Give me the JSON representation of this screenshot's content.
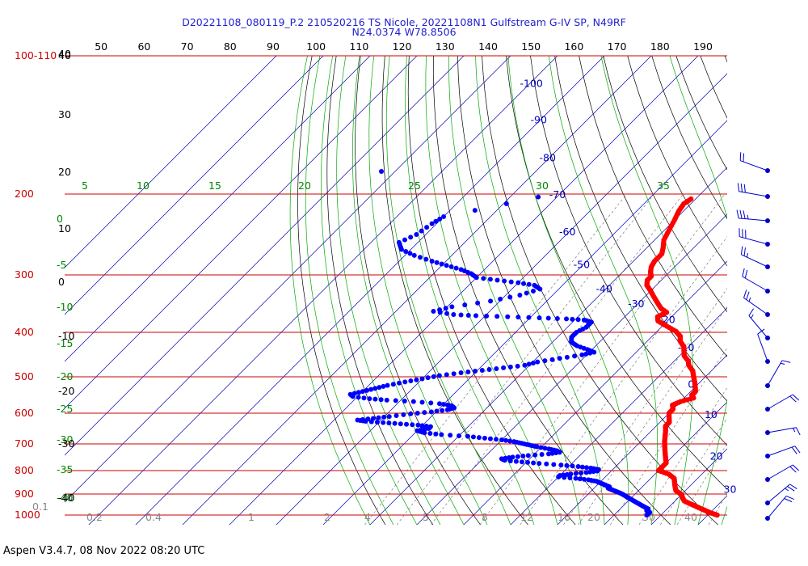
{
  "chart_data": {
    "type": "skew-t log-p sounding",
    "title_line1": "D20221108_080119_P.2 210520216 TS Nicole, 20221108N1 Gulfstream G-IV SP, N49RF",
    "title_line2": "N24.0374 W78.8506",
    "colors": {
      "title": "#1f1fd0",
      "isobar": "#cc0000",
      "isotherm": "#0000bb",
      "dry_adiabat": "#000000",
      "moist_adiabat": "#00aa00",
      "mixing_ratio": "#666666",
      "temperature": "#ff0000",
      "dewpoint": "#0000ff",
      "wind": "#0000cc"
    },
    "pressure_labels": [
      {
        "label": "100-110",
        "p": 100
      },
      {
        "label": "200",
        "p": 200
      },
      {
        "label": "300",
        "p": 300
      },
      {
        "label": "400",
        "p": 400
      },
      {
        "label": "500",
        "p": 500
      },
      {
        "label": "600",
        "p": 600
      },
      {
        "label": "700",
        "p": 700
      },
      {
        "label": "800",
        "p": 800
      },
      {
        "label": "900",
        "p": 900
      },
      {
        "label": "1000",
        "p": 1000
      }
    ],
    "isobars": [
      100,
      200,
      300,
      400,
      500,
      600,
      700,
      800,
      900,
      1000
    ],
    "top_theta_labels": [
      "40",
      "50",
      "60",
      "70",
      "80",
      "90",
      "100",
      "110",
      "120",
      "130",
      "140",
      "150",
      "160",
      "170",
      "180",
      "190"
    ],
    "isotherm_labels": [
      {
        "label": "-100",
        "t": -100,
        "p": 115
      },
      {
        "label": "-90",
        "t": -90,
        "p": 138
      },
      {
        "label": "-80",
        "t": -80,
        "p": 167
      },
      {
        "label": "-70",
        "t": -70,
        "p": 201
      },
      {
        "label": "-60",
        "t": -60,
        "p": 242
      },
      {
        "label": "-50",
        "t": -50,
        "p": 285
      },
      {
        "label": "-40",
        "t": -40,
        "p": 322
      },
      {
        "label": "-30",
        "t": -30,
        "p": 347
      },
      {
        "label": "-20",
        "t": -20,
        "p": 376
      },
      {
        "label": "-10",
        "t": -10,
        "p": 432
      },
      {
        "label": "0",
        "t": 0,
        "p": 520
      },
      {
        "label": "10",
        "t": 10,
        "p": 605
      },
      {
        "label": "20",
        "t": 20,
        "p": 745
      },
      {
        "label": "30",
        "t": 30,
        "p": 880
      }
    ],
    "moist_top_labels": [
      "5",
      "10",
      "15",
      "20",
      "25",
      "30",
      "35"
    ],
    "moist_left_labels": [
      "0",
      "-5",
      "-10",
      "-15",
      "-20",
      "-25",
      "-30",
      "-35",
      "-40"
    ],
    "dry_left_labels": [
      "40",
      "30",
      "20",
      "10",
      "0",
      "-10",
      "-20",
      "-30",
      "-40"
    ],
    "mixing_ratio_labels": [
      "0.1",
      "0.2",
      "0.4",
      "1",
      "2",
      "4",
      "5",
      "8",
      "12",
      "16",
      "20",
      "30",
      "40"
    ],
    "temperature_profile": [
      [
        205,
        -41
      ],
      [
        210,
        -41.5
      ],
      [
        218,
        -41
      ],
      [
        228,
        -40
      ],
      [
        240,
        -39
      ],
      [
        252,
        -38
      ],
      [
        262,
        -36.5
      ],
      [
        270,
        -35.5
      ],
      [
        280,
        -35.5
      ],
      [
        288,
        -35
      ],
      [
        296,
        -34
      ],
      [
        302,
        -33
      ],
      [
        308,
        -33
      ],
      [
        316,
        -32
      ],
      [
        325,
        -30
      ],
      [
        335,
        -28
      ],
      [
        345,
        -26
      ],
      [
        355,
        -24
      ],
      [
        362,
        -22
      ],
      [
        370,
        -23
      ],
      [
        378,
        -22
      ],
      [
        388,
        -19
      ],
      [
        398,
        -16
      ],
      [
        408,
        -14
      ],
      [
        418,
        -13
      ],
      [
        430,
        -11
      ],
      [
        440,
        -10
      ],
      [
        450,
        -9
      ],
      [
        462,
        -7
      ],
      [
        472,
        -6
      ],
      [
        485,
        -4
      ],
      [
        495,
        -3
      ],
      [
        505,
        -2
      ],
      [
        515,
        -1
      ],
      [
        526,
        0
      ],
      [
        538,
        1
      ],
      [
        548,
        1
      ],
      [
        556,
        2
      ],
      [
        566,
        0
      ],
      [
        576,
        -1
      ],
      [
        588,
        0
      ],
      [
        600,
        0
      ],
      [
        614,
        1
      ],
      [
        628,
        2
      ],
      [
        640,
        2
      ],
      [
        655,
        3
      ],
      [
        672,
        4
      ],
      [
        690,
        5
      ],
      [
        706,
        6
      ],
      [
        722,
        7
      ],
      [
        738,
        8
      ],
      [
        754,
        9
      ],
      [
        770,
        10
      ],
      [
        785,
        10
      ],
      [
        800,
        10
      ],
      [
        815,
        13
      ],
      [
        832,
        15
      ],
      [
        850,
        16
      ],
      [
        868,
        17
      ],
      [
        885,
        18
      ],
      [
        902,
        20
      ],
      [
        918,
        21
      ],
      [
        932,
        22
      ],
      [
        946,
        24
      ],
      [
        960,
        26
      ],
      [
        974,
        28
      ],
      [
        988,
        30
      ],
      [
        1000,
        32
      ]
    ],
    "dewpoint_profile": [
      [
        203,
        -74
      ],
      [
        224,
        -90
      ],
      [
        232,
        -91
      ],
      [
        245,
        -92
      ],
      [
        255,
        -94
      ],
      [
        264,
        -92
      ],
      [
        272,
        -88
      ],
      [
        280,
        -83
      ],
      [
        286,
        -79
      ],
      [
        292,
        -75
      ],
      [
        298,
        -72
      ],
      [
        304,
        -70
      ],
      [
        308,
        -65
      ],
      [
        312,
        -60
      ],
      [
        316,
        -56
      ],
      [
        322,
        -54
      ],
      [
        332,
        -57
      ],
      [
        342,
        -62
      ],
      [
        352,
        -69
      ],
      [
        360,
        -72
      ],
      [
        366,
        -67
      ],
      [
        368,
        -62
      ],
      [
        370,
        -55
      ],
      [
        372,
        -48
      ],
      [
        374,
        -42
      ],
      [
        376,
        -38
      ],
      [
        380,
        -36
      ],
      [
        390,
        -36
      ],
      [
        400,
        -37
      ],
      [
        410,
        -37
      ],
      [
        420,
        -36
      ],
      [
        428,
        -34
      ],
      [
        436,
        -31
      ],
      [
        442,
        -29
      ],
      [
        448,
        -31
      ],
      [
        456,
        -35
      ],
      [
        464,
        -39
      ],
      [
        472,
        -41
      ],
      [
        478,
        -45
      ],
      [
        484,
        -49
      ],
      [
        490,
        -53
      ],
      [
        497,
        -57
      ],
      [
        505,
        -60
      ],
      [
        513,
        -63
      ],
      [
        522,
        -66
      ],
      [
        530,
        -68
      ],
      [
        538,
        -70
      ],
      [
        546,
        -72
      ],
      [
        552,
        -71
      ],
      [
        558,
        -67
      ],
      [
        562,
        -63
      ],
      [
        566,
        -57
      ],
      [
        572,
        -51
      ],
      [
        578,
        -48
      ],
      [
        584,
        -47
      ],
      [
        590,
        -48
      ],
      [
        596,
        -51
      ],
      [
        602,
        -55
      ],
      [
        610,
        -59
      ],
      [
        616,
        -62
      ],
      [
        621,
        -65
      ],
      [
        625,
        -63
      ],
      [
        629,
        -59
      ],
      [
        633,
        -55
      ],
      [
        637,
        -51
      ],
      [
        642,
        -48
      ],
      [
        648,
        -48
      ],
      [
        655,
        -50
      ],
      [
        662,
        -48
      ],
      [
        668,
        -44
      ],
      [
        674,
        -38
      ],
      [
        680,
        -34
      ],
      [
        686,
        -30
      ],
      [
        692,
        -27
      ],
      [
        698,
        -25
      ],
      [
        704,
        -23
      ],
      [
        710,
        -21
      ],
      [
        718,
        -18
      ],
      [
        724,
        -16
      ],
      [
        730,
        -15
      ],
      [
        736,
        -17
      ],
      [
        742,
        -21
      ],
      [
        748,
        -24
      ],
      [
        754,
        -26
      ],
      [
        760,
        -25
      ],
      [
        766,
        -21
      ],
      [
        772,
        -17
      ],
      [
        778,
        -12
      ],
      [
        784,
        -8
      ],
      [
        790,
        -5
      ],
      [
        796,
        -3
      ],
      [
        802,
        -3
      ],
      [
        808,
        -5
      ],
      [
        814,
        -8
      ],
      [
        820,
        -10
      ],
      [
        826,
        -10
      ],
      [
        832,
        -6
      ],
      [
        838,
        -3
      ],
      [
        844,
        -1
      ],
      [
        850,
        0
      ],
      [
        856,
        1
      ],
      [
        862,
        2
      ],
      [
        868,
        3
      ],
      [
        874,
        3
      ],
      [
        880,
        4
      ],
      [
        886,
        5
      ],
      [
        892,
        6
      ],
      [
        898,
        7
      ],
      [
        906,
        8
      ],
      [
        914,
        9
      ],
      [
        922,
        10
      ],
      [
        930,
        11
      ],
      [
        938,
        12
      ],
      [
        946,
        13
      ],
      [
        954,
        14
      ],
      [
        962,
        15
      ],
      [
        970,
        16
      ],
      [
        978,
        16
      ],
      [
        986,
        17
      ],
      [
        994,
        17
      ],
      [
        1000,
        17
      ]
    ],
    "wind_barbs": [
      {
        "p": 170,
        "speed_kt": 20,
        "direction_deg": 290
      },
      {
        "p": 200,
        "speed_kt": 30,
        "direction_deg": 280
      },
      {
        "p": 230,
        "speed_kt": 35,
        "direction_deg": 275
      },
      {
        "p": 260,
        "speed_kt": 30,
        "direction_deg": 285
      },
      {
        "p": 290,
        "speed_kt": 25,
        "direction_deg": 295
      },
      {
        "p": 330,
        "speed_kt": 20,
        "direction_deg": 300
      },
      {
        "p": 370,
        "speed_kt": 25,
        "direction_deg": 305
      },
      {
        "p": 410,
        "speed_kt": 15,
        "direction_deg": 320
      },
      {
        "p": 460,
        "speed_kt": 10,
        "direction_deg": 340
      },
      {
        "p": 530,
        "speed_kt": 15,
        "direction_deg": 30
      },
      {
        "p": 600,
        "speed_kt": 20,
        "direction_deg": 60
      },
      {
        "p": 680,
        "speed_kt": 15,
        "direction_deg": 80
      },
      {
        "p": 760,
        "speed_kt": 20,
        "direction_deg": 70
      },
      {
        "p": 840,
        "speed_kt": 20,
        "direction_deg": 60
      },
      {
        "p": 920,
        "speed_kt": 25,
        "direction_deg": 50
      },
      {
        "p": 990,
        "speed_kt": 20,
        "direction_deg": 40
      }
    ]
  },
  "footer": "Aspen V3.4.7, 08 Nov 2022  08:20 UTC"
}
